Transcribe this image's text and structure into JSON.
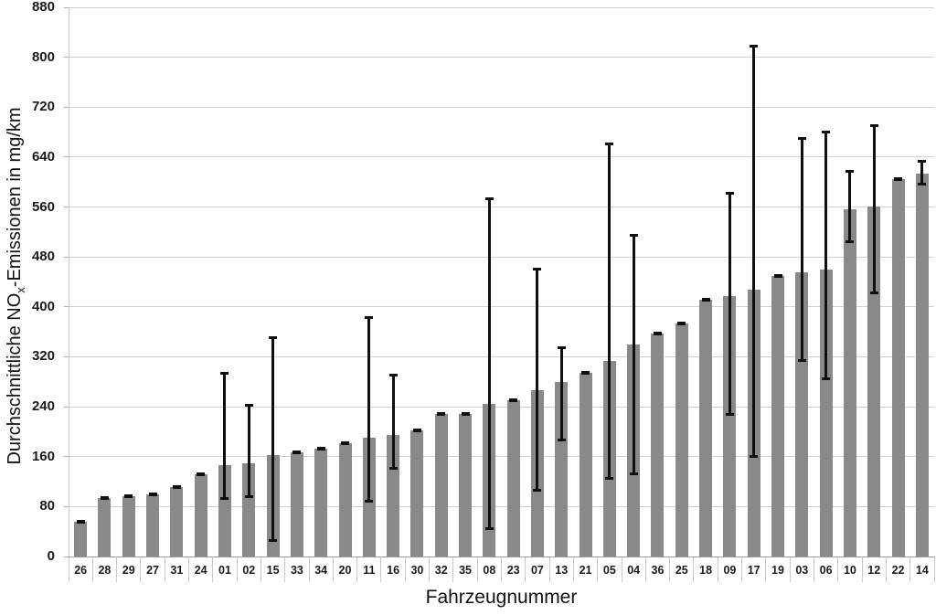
{
  "chart_data": {
    "type": "bar",
    "title": "",
    "xlabel": "Fahrzeugnummer",
    "ylabel_parts": {
      "prefix": "Durchschnittliche NO",
      "subscript": "x",
      "suffix": "-Emissionen in mg/km"
    },
    "ylabel_plain": "Durchschnittliche NOx-Emissionen in mg/km",
    "ylim": [
      0,
      880
    ],
    "ytick_step": 80,
    "ytick_labels": [
      "0",
      "80",
      "160",
      "240",
      "320",
      "400",
      "480",
      "560",
      "640",
      "720",
      "800",
      "880"
    ],
    "grid": true,
    "legend": false,
    "categories": [
      "26",
      "28",
      "29",
      "27",
      "31",
      "24",
      "01",
      "02",
      "15",
      "33",
      "34",
      "20",
      "11",
      "16",
      "30",
      "32",
      "35",
      "08",
      "23",
      "07",
      "13",
      "21",
      "05",
      "04",
      "36",
      "25",
      "18",
      "09",
      "17",
      "19",
      "03",
      "06",
      "10",
      "12",
      "22",
      "14"
    ],
    "values": [
      55,
      93,
      97,
      100,
      112,
      132,
      146,
      150,
      162,
      167,
      173,
      181,
      190,
      195,
      202,
      228,
      229,
      245,
      250,
      267,
      280,
      294,
      313,
      339,
      358,
      373,
      411,
      417,
      427,
      450,
      456,
      460,
      556,
      561,
      605,
      614
    ],
    "error_low": [
      55,
      93,
      97,
      100,
      112,
      132,
      94,
      96,
      26,
      167,
      173,
      181,
      90,
      142,
      202,
      228,
      229,
      45,
      250,
      107,
      188,
      294,
      126,
      133,
      358,
      373,
      411,
      228,
      161,
      450,
      315,
      285,
      505,
      423,
      605,
      597
    ],
    "error_high": [
      55,
      93,
      97,
      100,
      112,
      132,
      293,
      241,
      350,
      167,
      173,
      181,
      382,
      290,
      202,
      228,
      229,
      572,
      250,
      460,
      334,
      294,
      661,
      514,
      358,
      373,
      411,
      582,
      817,
      450,
      669,
      679,
      617,
      689,
      605,
      632
    ],
    "colors": {
      "bar": "#898989",
      "error_bar": "#0f0f0f",
      "gridline": "#d2d2d2",
      "x_axis": "#9a9a9a",
      "y_axis": "#c6c6c6",
      "tick_label": "#1a1a1a",
      "background": "#ffffff"
    }
  }
}
